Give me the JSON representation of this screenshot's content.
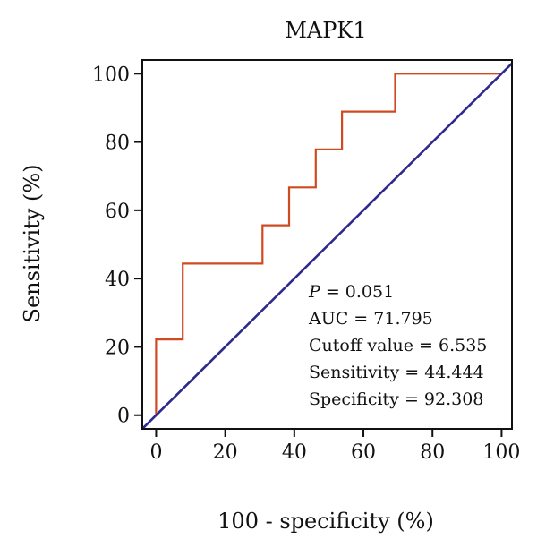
{
  "chart_data": {
    "type": "line",
    "title": "MAPK1",
    "xlabel": "100 - specificity (%)",
    "ylabel": "Sensitivity (%)",
    "xlim": [
      -4,
      103
    ],
    "ylim": [
      -4,
      104
    ],
    "x_ticks": [
      0,
      20,
      40,
      60,
      80,
      100
    ],
    "y_ticks": [
      0,
      20,
      40,
      60,
      80,
      100
    ],
    "x_tick_labels": [
      "0",
      "20",
      "40",
      "60",
      "80",
      "100"
    ],
    "y_tick_labels": [
      "0",
      "20",
      "40",
      "60",
      "80",
      "100"
    ],
    "grid": false,
    "series": [
      {
        "color": "#d04a20",
        "style": "step",
        "x": [
          0,
          0,
          7.7,
          7.7,
          30.8,
          30.8,
          38.5,
          38.5,
          46.2,
          46.2,
          53.8,
          53.8,
          69.2,
          69.2,
          100
        ],
        "y": [
          0,
          22.2,
          22.2,
          44.4,
          44.4,
          55.6,
          55.6,
          66.7,
          66.7,
          77.8,
          77.8,
          88.9,
          88.9,
          100,
          100
        ]
      },
      {
        "color": "#2e2a8c",
        "style": "reference-diagonal",
        "x": [
          -4,
          103
        ],
        "y": [
          -4,
          103
        ]
      }
    ],
    "annotations": {
      "p_symbol": "P",
      "p_rest": " = 0.051",
      "auc": "AUC = 71.795",
      "cutoff": "Cutoff value = 6.535",
      "sensitivity": "Sensitivity = 44.444",
      "specificity": "Specificity = 92.308"
    }
  }
}
